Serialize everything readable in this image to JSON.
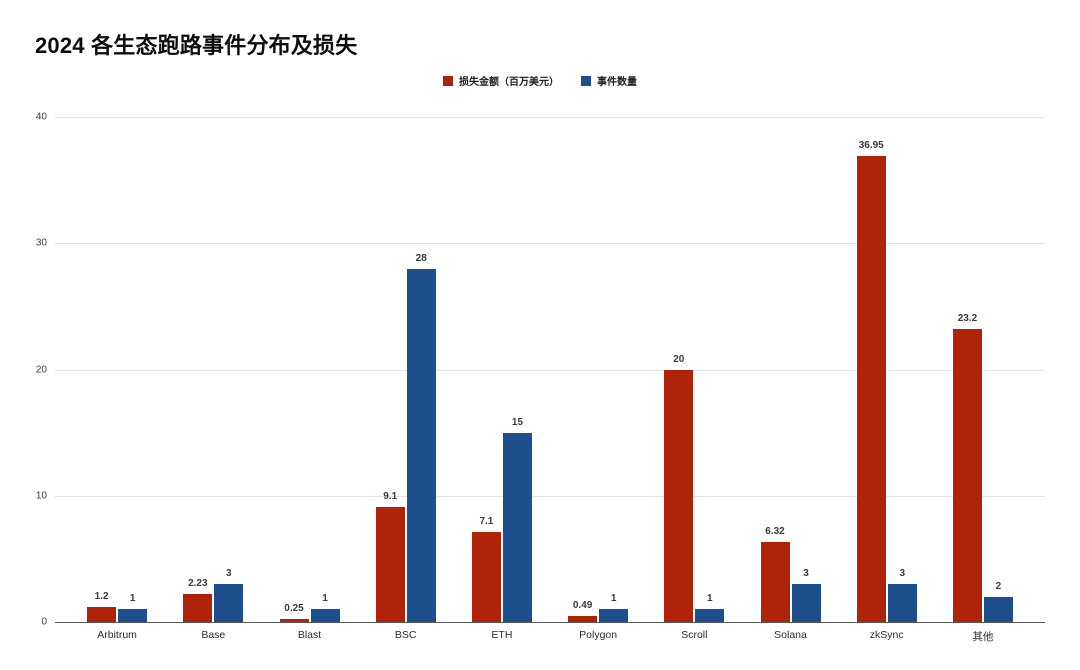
{
  "title": "2024 各生态跑路事件分布及损失",
  "colors": {
    "loss_series": "#AF2308",
    "count_series": "#1F4E8C",
    "gridline": "#e3e3e3",
    "axis_line": "#585858"
  },
  "legend": {
    "items": [
      {
        "label": "损失金额（百万美元）",
        "color": "#AF2308"
      },
      {
        "label": "事件数量",
        "color": "#1F4E8C"
      }
    ]
  },
  "chart_data": {
    "type": "bar",
    "title": "2024 各生态跑路事件分布及损失",
    "categories": [
      "Arbitrum",
      "Base",
      "Blast",
      "BSC",
      "ETH",
      "Polygon",
      "Scroll",
      "Solana",
      "zkSync",
      "其他"
    ],
    "series": [
      {
        "name": "损失金额（百万美元）",
        "color": "#AF2308",
        "values": [
          1.2,
          2.23,
          0.25,
          9.1,
          7.1,
          0.49,
          20,
          6.32,
          36.95,
          23.2
        ],
        "labels": [
          "1.2",
          "2.23",
          "0.25",
          "9.1",
          "7.1",
          "0.49",
          "20",
          "6.32",
          "36.95",
          "23.2"
        ]
      },
      {
        "name": "事件数量",
        "color": "#1F4E8C",
        "values": [
          1,
          3,
          1,
          28,
          15,
          1,
          1,
          3,
          3,
          2
        ],
        "labels": [
          "1",
          "3",
          "1",
          "28",
          "15",
          "1",
          "1",
          "3",
          "3",
          "2"
        ]
      }
    ],
    "xlabel": "",
    "ylabel": "",
    "ylim": [
      0,
      40
    ],
    "yticks": [
      0,
      10,
      20,
      30,
      40
    ],
    "grid": true,
    "legend_position": "top-center",
    "value_labels": true
  }
}
